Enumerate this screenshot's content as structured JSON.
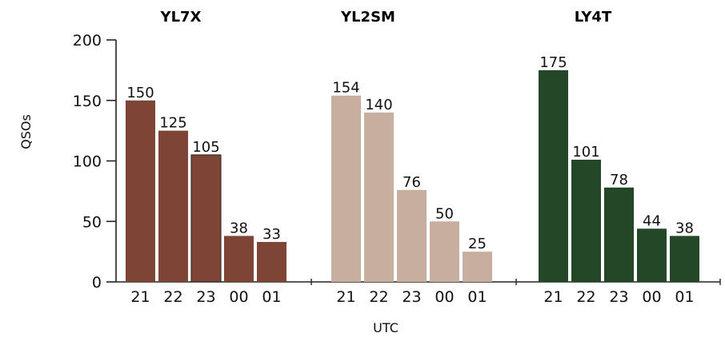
{
  "chart_data": {
    "type": "bar",
    "ylabel": "QSOs",
    "xlabel": "UTC",
    "ylim": [
      0,
      200
    ],
    "yticks": [
      "0",
      "50",
      "100",
      "150",
      "200"
    ],
    "categories": [
      "21",
      "22",
      "23",
      "00",
      "01"
    ],
    "series": [
      {
        "name": "YL7X",
        "color": "#7e4436",
        "values": [
          150,
          125,
          105,
          38,
          33
        ]
      },
      {
        "name": "YL2SM",
        "color": "#c8ae9e",
        "values": [
          154,
          140,
          76,
          50,
          25
        ]
      },
      {
        "name": "LY4T",
        "color": "#244728",
        "values": [
          175,
          101,
          78,
          44,
          38
        ]
      }
    ]
  }
}
